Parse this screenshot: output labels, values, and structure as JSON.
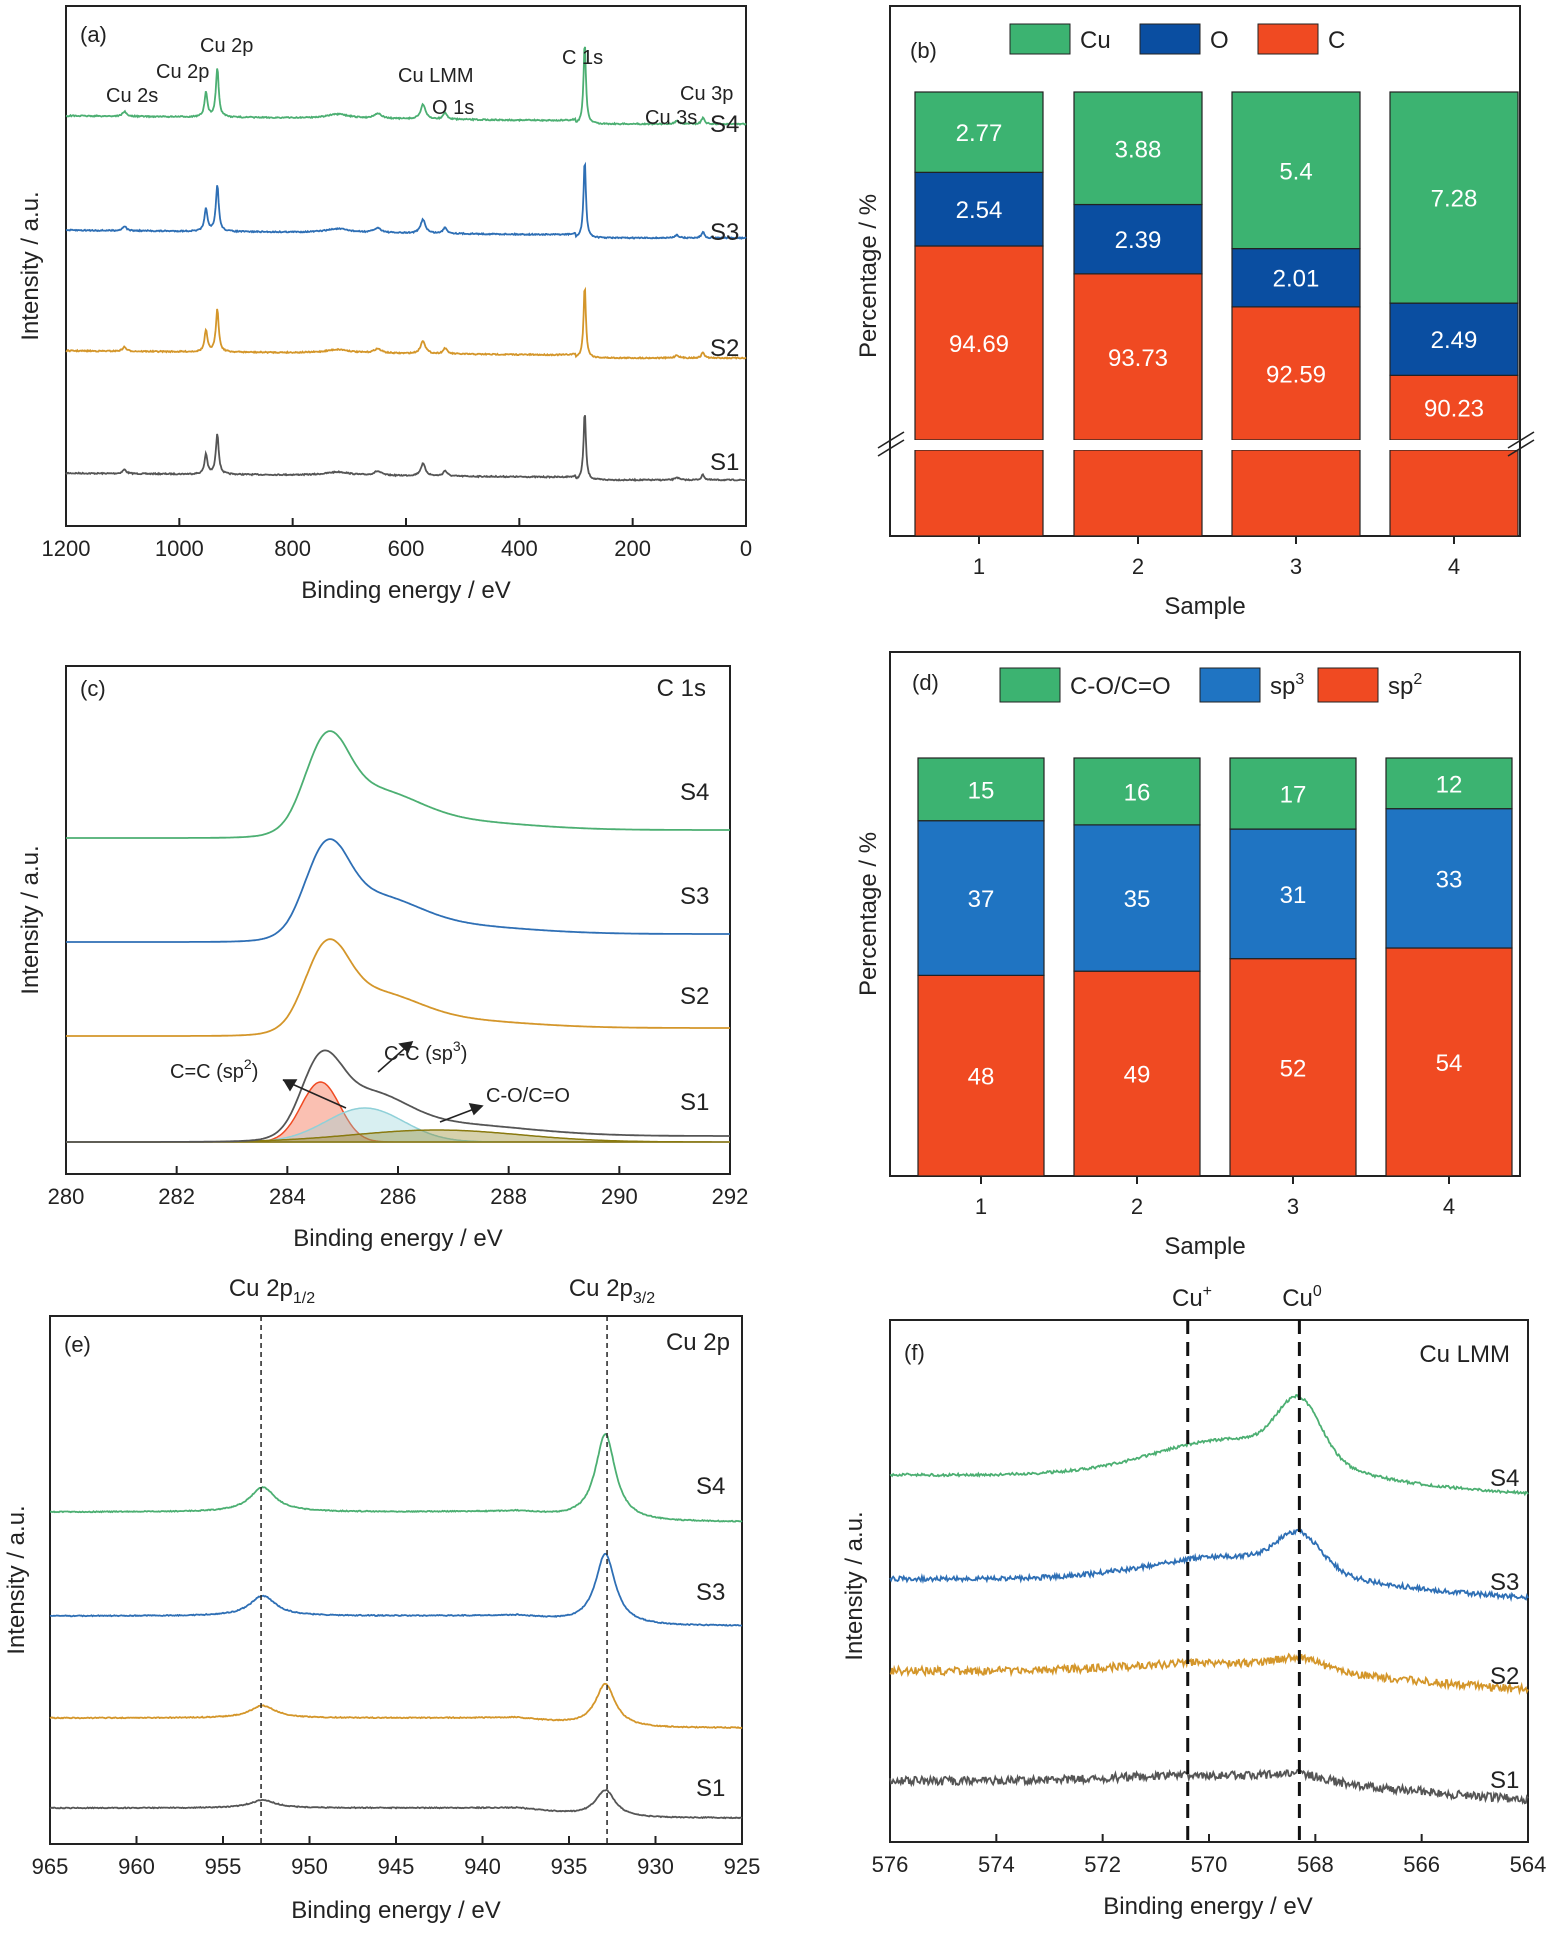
{
  "colors": {
    "S1": "#555555",
    "S2": "#d4962a",
    "S3": "#2e6fb5",
    "S4": "#4caf72",
    "Cu": "#3cb371",
    "O": "#0a4ea1",
    "C": "#f04a22",
    "COCO": "#3cb371",
    "sp3": "#1f74c2",
    "sp2": "#f04a22"
  },
  "chart_data": [
    {
      "id": "a",
      "type": "line",
      "panel_label": "(a)",
      "xlabel": "Binding energy / eV",
      "ylabel": "Intensity / a.u.",
      "xlim": [
        1200,
        0
      ],
      "x_reversed": true,
      "xticks": [
        "1200",
        "1000",
        "800",
        "600",
        "400",
        "200",
        "0"
      ],
      "series": [
        {
          "name": "S1"
        },
        {
          "name": "S2"
        },
        {
          "name": "S3"
        },
        {
          "name": "S4"
        }
      ],
      "peak_labels": [
        "Cu 2s",
        "Cu 2p",
        "Cu 2p",
        "Cu LMM",
        "O 1s",
        "C 1s",
        "Cu 3s",
        "Cu 3p"
      ]
    },
    {
      "id": "b",
      "type": "bar",
      "stacked": true,
      "panel_label": "(b)",
      "xlabel": "Sample",
      "ylabel": "Percentage / %",
      "categories": [
        "1",
        "2",
        "3",
        "4"
      ],
      "axis_break": true,
      "legend": [
        "Cu",
        "O",
        "C"
      ],
      "legend_position": "top",
      "series": [
        {
          "name": "C",
          "values": [
            94.69,
            93.73,
            92.59,
            90.23
          ],
          "labels": [
            "94.69",
            "93.73",
            "92.59",
            "90.23"
          ]
        },
        {
          "name": "O",
          "values": [
            2.54,
            2.39,
            2.01,
            2.49
          ],
          "labels": [
            "2.54",
            "2.39",
            "2.01",
            "2.49"
          ]
        },
        {
          "name": "Cu",
          "values": [
            2.77,
            3.88,
            5.4,
            7.28
          ],
          "labels": [
            "2.77",
            "3.88",
            "5.4",
            "7.28"
          ]
        }
      ]
    },
    {
      "id": "c",
      "type": "line",
      "panel_label": "(c)",
      "corner_label": "C 1s",
      "xlabel": "Binding energy / eV",
      "ylabel": "Intensity / a.u.",
      "xlim": [
        280,
        292
      ],
      "xticks": [
        "280",
        "282",
        "284",
        "286",
        "288",
        "290",
        "292"
      ],
      "series": [
        {
          "name": "S1"
        },
        {
          "name": "S2"
        },
        {
          "name": "S3"
        },
        {
          "name": "S4"
        }
      ],
      "fit_labels": {
        "sp2_pre": "C=C (sp",
        "sp2_sup": "2",
        "sp2_post": ")",
        "sp3_pre": "C-C (sp",
        "sp3_sup": "3",
        "sp3_post": ")",
        "coco": "C-O/C=O"
      }
    },
    {
      "id": "d",
      "type": "bar",
      "stacked": true,
      "panel_label": "(d)",
      "xlabel": "Sample",
      "ylabel": "Percentage / %",
      "categories": [
        "1",
        "2",
        "3",
        "4"
      ],
      "legend": {
        "coco": "C-O/C=O",
        "sp3_pre": "sp",
        "sp3_sup": "3",
        "sp2_pre": "sp",
        "sp2_sup": "2"
      },
      "legend_position": "top",
      "series": [
        {
          "name": "sp2",
          "values": [
            48,
            49,
            52,
            54
          ],
          "labels": [
            "48",
            "49",
            "52",
            "54"
          ]
        },
        {
          "name": "sp3",
          "values": [
            37,
            35,
            31,
            33
          ],
          "labels": [
            "37",
            "35",
            "31",
            "33"
          ]
        },
        {
          "name": "C-O/C=O",
          "values": [
            15,
            16,
            17,
            12
          ],
          "labels": [
            "15",
            "16",
            "17",
            "12"
          ]
        }
      ]
    },
    {
      "id": "e",
      "type": "line",
      "panel_label": "(e)",
      "corner_label": "Cu 2p",
      "xlabel": "Binding energy / eV",
      "ylabel": "Intensity / a.u.",
      "xlim": [
        965,
        925
      ],
      "x_reversed": true,
      "xticks": [
        "965",
        "960",
        "955",
        "950",
        "945",
        "940",
        "935",
        "930",
        "925"
      ],
      "series": [
        {
          "name": "S1"
        },
        {
          "name": "S2"
        },
        {
          "name": "S3"
        },
        {
          "name": "S4"
        }
      ],
      "reference_lines": [
        952.8,
        932.8
      ],
      "ref_labels": {
        "half_pre": "Cu 2p",
        "half_sub": "1/2",
        "three_pre": "Cu 2p",
        "three_sub": "3/2"
      }
    },
    {
      "id": "f",
      "type": "line",
      "panel_label": "(f)",
      "corner_label": "Cu LMM",
      "xlabel": "Binding energy / eV",
      "ylabel": "Intensity / a.u.",
      "xlim": [
        576,
        564
      ],
      "x_reversed": true,
      "xticks": [
        "576",
        "574",
        "572",
        "570",
        "568",
        "566",
        "564"
      ],
      "series": [
        {
          "name": "S1"
        },
        {
          "name": "S2"
        },
        {
          "name": "S3"
        },
        {
          "name": "S4"
        }
      ],
      "reference_lines": [
        570.4,
        568.3
      ],
      "ref_labels": {
        "cuplus_pre": "Cu",
        "cuplus_sup": "+",
        "cu0_pre": "Cu",
        "cu0_sup": "0"
      }
    }
  ]
}
